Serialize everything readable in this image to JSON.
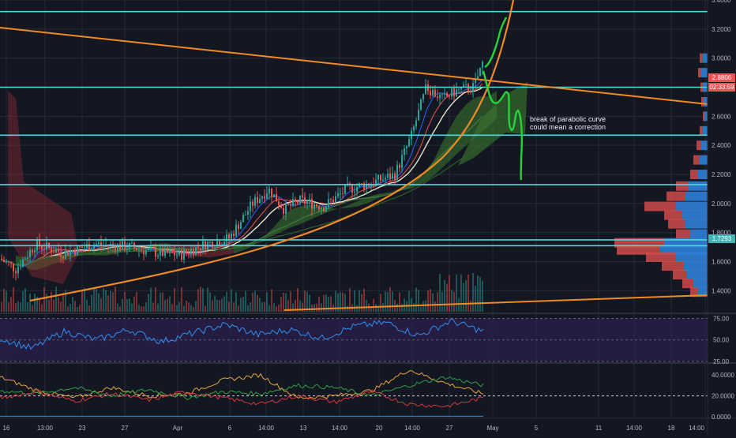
{
  "chart_data": [
    {
      "type": "candlestick",
      "pane": "price",
      "ylim": [
        1.25,
        3.4
      ],
      "y_ticks": [
        "3.4000",
        "3.2000",
        "3.0000",
        "2.8000",
        "2.6000",
        "2.4000",
        "2.2000",
        "2.0000",
        "1.8000",
        "1.6000",
        "1.4000"
      ],
      "x_ticks": [
        "16",
        "13:00",
        "23",
        "27",
        "Apr",
        "6",
        "14:00",
        "13",
        "14:00",
        "20",
        "14:00",
        "27",
        "May",
        "5",
        "11",
        "14:00",
        "18",
        "14:00"
      ],
      "price_labels": {
        "last": "2.8806",
        "countdown": "02:33:59",
        "level": "1.7293"
      },
      "horizontal_levels": [
        3.32,
        2.8,
        2.47,
        2.13,
        1.75,
        1.71
      ],
      "annotation": [
        "break of parabolic curve",
        "could mean a correction"
      ],
      "candles_approx": [
        {
          "t": "16",
          "close": 1.62
        },
        {
          "t": "13:00",
          "close": 1.7
        },
        {
          "t": "23",
          "close": 1.73
        },
        {
          "t": "27",
          "close": 1.74
        },
        {
          "t": "Apr",
          "close": 1.67
        },
        {
          "t": "6",
          "close": 1.74
        },
        {
          "t": "14:00",
          "close": 2.05
        },
        {
          "t": "13",
          "close": 1.97
        },
        {
          "t": "14:00",
          "close": 2.1
        },
        {
          "t": "20",
          "close": 2.22
        },
        {
          "t": "14:00",
          "close": 2.75
        },
        {
          "t": "27",
          "close": 2.8
        },
        {
          "t": "May",
          "close": 2.88
        }
      ]
    },
    {
      "type": "line",
      "pane": "rsi",
      "ylim": [
        25,
        80
      ],
      "y_ticks": [
        "75.00",
        "50.00",
        "25.00"
      ],
      "series": [
        {
          "values": [
            52,
            40,
            60,
            50,
            62,
            48,
            58,
            68,
            56,
            62,
            52,
            66,
            70,
            55,
            72,
            60
          ]
        }
      ]
    },
    {
      "type": "line",
      "pane": "dmi",
      "ylim": [
        0,
        50
      ],
      "y_ticks": [
        "40.0000",
        "20.0000",
        "0.0000"
      ],
      "series": [
        {
          "values": [
            38,
            25,
            18,
            28,
            20,
            22,
            35,
            40,
            18,
            20,
            25,
            45,
            32,
            22
          ]
        },
        {
          "values": [
            25,
            22,
            28,
            20,
            26,
            18,
            24,
            22,
            30,
            28,
            20,
            30,
            38,
            30
          ]
        },
        {
          "values": [
            18,
            24,
            15,
            22,
            16,
            24,
            18,
            12,
            20,
            14,
            24,
            12,
            10,
            18
          ]
        }
      ]
    }
  ],
  "colors": {
    "background": "#131722",
    "grid": "#262b38",
    "horizontal_level": "#4fd7dc",
    "trendline": "#f08a24",
    "hand_drawn": "#26d43a",
    "candle_up": "#26a69a",
    "candle_down": "#ef5350",
    "rsi_line": "#2f8ff0",
    "rsi_band": "#2a1f4a",
    "last_price_tag": "#f05252",
    "level_tag": "#3fb5b5"
  }
}
